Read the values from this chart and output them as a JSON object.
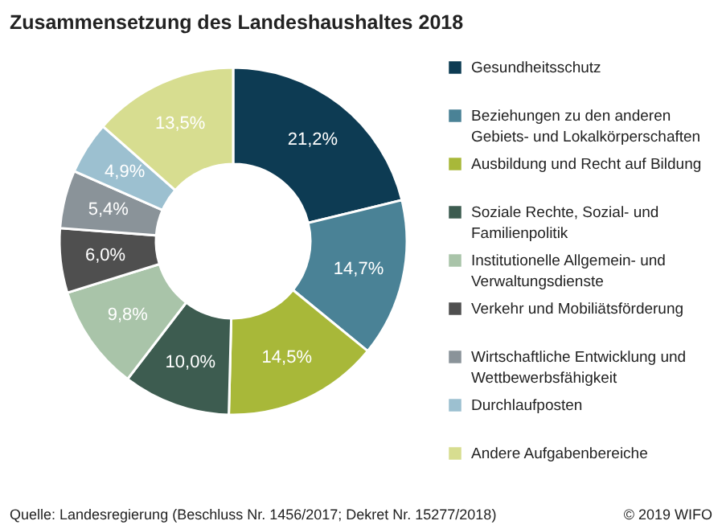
{
  "chart_data": {
    "type": "donut",
    "title": "Zusammensetzung des Landeshaushaltes 2018",
    "categories": [
      "Gesundheitsschutz",
      "Beziehungen zu den anderen Gebiets- und Lokalkörperschaften",
      "Ausbildung und Recht auf Bildung",
      "Soziale Rechte, Sozial- und Familienpolitik",
      "Institutionelle Allgemein- und Verwaltungsdienste",
      "Verkehr und Mobiliätsförderung",
      "Wirtschaftliche Entwicklung und Wettbewerbsfähigkeit",
      "Durchlaufposten",
      "Andere Aufgabenbereiche"
    ],
    "values": [
      21.2,
      14.7,
      14.5,
      10.0,
      9.8,
      6.0,
      5.4,
      4.9,
      13.5
    ],
    "value_labels": [
      "21,2%",
      "14,7%",
      "14,5%",
      "10,0%",
      "9,8%",
      "6,0%",
      "5,4%",
      "4,9%",
      "13,5%"
    ],
    "colors": [
      "#0d3b53",
      "#4a8296",
      "#a8b839",
      "#3d5c50",
      "#a9c4a9",
      "#4f4f4f",
      "#8a9399",
      "#9cc0d0",
      "#d7dd90"
    ],
    "legend": "right",
    "annotations": [
      "Quelle: Landesregierung (Beschluss Nr. 1456/2017; Dekret Nr. 15277/2018)",
      "© 2019 WIFO"
    ]
  }
}
